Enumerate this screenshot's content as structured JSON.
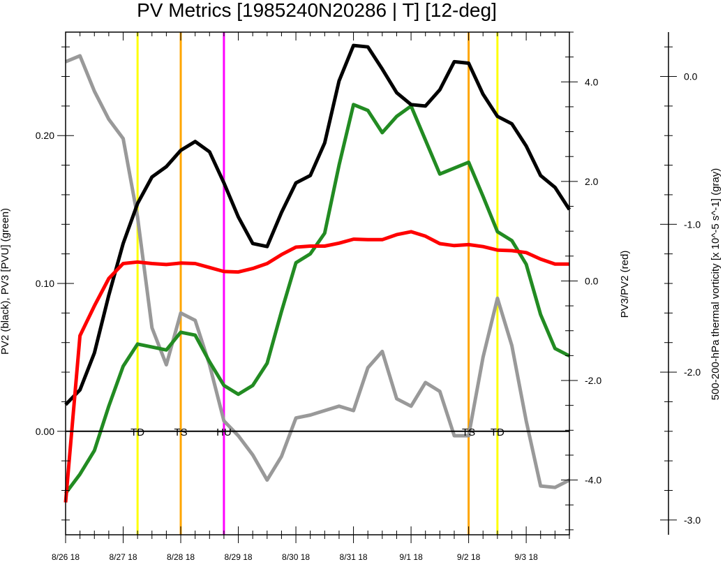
{
  "chart_data": {
    "type": "line",
    "title": "PV Metrics [1985240N20286 | T] [12-deg]",
    "x_tick_labels": [
      "8/26 18",
      "8/27 18",
      "8/28 18",
      "8/29 18",
      "8/30 18",
      "8/31 18",
      "9/1 18",
      "9/2 18",
      "9/3 18"
    ],
    "x_range_days": [
      0,
      8.75
    ],
    "left_axis": {
      "label": "PV2 (black), PV3 [PVU] (green)",
      "ylim": [
        -0.07,
        0.27
      ],
      "tick_labels": [
        "0.00",
        "0.10",
        "0.20"
      ],
      "tick_values": [
        0.0,
        0.1,
        0.2
      ]
    },
    "right_axis_1": {
      "label": "PV3/PV2 (red)",
      "ylim": [
        -5.1,
        5.0
      ],
      "tick_labels": [
        "-4.0",
        "-2.0",
        "0.0",
        "2.0",
        "4.0"
      ],
      "tick_values": [
        -4.0,
        -2.0,
        0.0,
        2.0,
        4.0
      ]
    },
    "right_axis_2": {
      "label": "500-200-hPa thermal vorticity [x 10^-5 s^-1] (gray)",
      "ylim": [
        -3.1,
        0.3
      ],
      "tick_labels": [
        "-3.0",
        "-2.0",
        "-1.0",
        "0.0"
      ],
      "tick_values": [
        -3.0,
        -2.0,
        -1.0,
        0.0
      ]
    },
    "x_days": [
      0,
      0.25,
      0.5,
      0.75,
      1.0,
      1.25,
      1.5,
      1.75,
      2.0,
      2.25,
      2.5,
      2.75,
      3.0,
      3.25,
      3.5,
      3.75,
      4.0,
      4.25,
      4.5,
      4.75,
      5.0,
      5.25,
      5.5,
      5.75,
      6.0,
      6.25,
      6.5,
      6.75,
      7.0,
      7.25,
      7.5,
      7.75,
      8.0,
      8.25,
      8.5,
      8.75
    ],
    "series": [
      {
        "color": "#000000",
        "axis": "left",
        "values": [
          0.018,
          0.028,
          0.053,
          0.092,
          0.127,
          0.154,
          0.172,
          0.179,
          0.19,
          0.196,
          0.189,
          0.168,
          0.145,
          0.127,
          0.125,
          0.148,
          0.168,
          0.173,
          0.195,
          0.237,
          0.261,
          0.26,
          0.245,
          0.229,
          0.221,
          0.22,
          0.231,
          0.25,
          0.249,
          0.228,
          0.213,
          0.208,
          0.193,
          0.173,
          0.165,
          0.15
        ]
      },
      {
        "color": "#228b22",
        "axis": "left",
        "values": [
          -0.042,
          -0.029,
          -0.013,
          0.017,
          0.044,
          0.059,
          0.057,
          0.055,
          0.067,
          0.065,
          0.047,
          0.031,
          0.025,
          0.031,
          0.046,
          0.081,
          0.114,
          0.12,
          0.134,
          0.18,
          0.221,
          0.217,
          0.202,
          0.213,
          0.22,
          0.197,
          0.174,
          0.178,
          0.182,
          0.159,
          0.135,
          0.129,
          0.113,
          0.079,
          0.056,
          0.051
        ]
      },
      {
        "color": "#ff0000",
        "axis": "right_1",
        "values": [
          -4.45,
          -1.1,
          -0.5,
          0.05,
          0.35,
          0.38,
          0.35,
          0.33,
          0.36,
          0.35,
          0.27,
          0.19,
          0.18,
          0.25,
          0.35,
          0.53,
          0.68,
          0.7,
          0.7,
          0.76,
          0.84,
          0.83,
          0.83,
          0.93,
          0.99,
          0.9,
          0.75,
          0.71,
          0.73,
          0.69,
          0.62,
          0.61,
          0.57,
          0.44,
          0.34,
          0.34
        ]
      },
      {
        "color": "#999999",
        "axis": "right_2",
        "values": [
          0.1,
          0.14,
          -0.1,
          -0.29,
          -0.42,
          -0.95,
          -1.7,
          -1.95,
          -1.6,
          -1.65,
          -1.95,
          -2.33,
          -2.43,
          -2.56,
          -2.73,
          -2.57,
          -2.31,
          -2.29,
          -2.26,
          -2.23,
          -2.26,
          -1.97,
          -1.86,
          -2.18,
          -2.23,
          -2.07,
          -2.13,
          -2.43,
          -2.43,
          -1.9,
          -1.5,
          -1.82,
          -2.33,
          -2.77,
          -2.78,
          -2.73
        ]
      }
    ],
    "events": [
      {
        "label": "TD",
        "x_day": 1.25,
        "color": "#ffff00"
      },
      {
        "label": "TS",
        "x_day": 2.0,
        "color": "#ffa500"
      },
      {
        "label": "HU",
        "x_day": 2.75,
        "color": "#ff00ff"
      },
      {
        "label": "TS",
        "x_day": 7.0,
        "color": "#ffa500"
      },
      {
        "label": "TD",
        "x_day": 7.5,
        "color": "#ffff00"
      }
    ]
  }
}
